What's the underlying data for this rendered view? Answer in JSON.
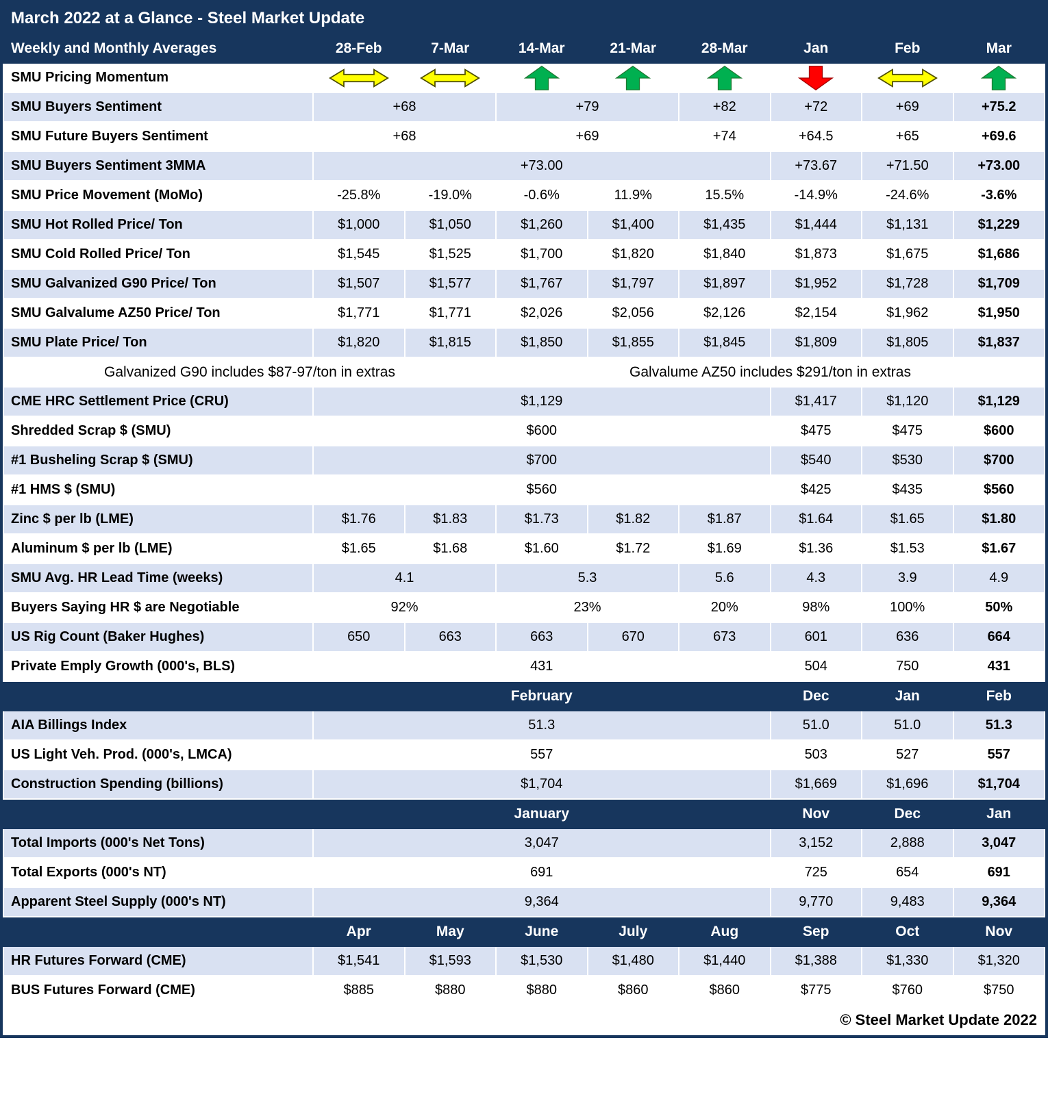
{
  "title": "March 2022 at a Glance - Steel Market Update",
  "colors": {
    "navy": "#17365D",
    "row_alt": "#D9E1F2",
    "arrow_up": "#00B050",
    "arrow_down": "#FF0000",
    "arrow_sideways": "#FFFF00"
  },
  "header": {
    "label": "Weekly and Monthly Averages",
    "cols": [
      "28-Feb",
      "7-Mar",
      "14-Mar",
      "21-Mar",
      "28-Mar",
      "Jan",
      "Feb",
      "Mar"
    ]
  },
  "rows": [
    {
      "type": "momentum",
      "shade": "white",
      "label": "SMU Pricing Momentum",
      "arrows": [
        "sideways",
        "sideways",
        "up",
        "up",
        "up",
        "down",
        "sideways",
        "up"
      ]
    },
    {
      "type": "data",
      "shade": "blue",
      "label": "SMU Buyers Sentiment",
      "cells": [
        {
          "t": "+68",
          "span": 2
        },
        {
          "t": "+79",
          "span": 2
        },
        {
          "t": "+82"
        },
        {
          "t": "+72"
        },
        {
          "t": "+69"
        },
        {
          "t": "+75.2",
          "b": true
        }
      ]
    },
    {
      "type": "data",
      "shade": "white",
      "label": "SMU Future Buyers Sentiment",
      "cells": [
        {
          "t": "+68",
          "span": 2
        },
        {
          "t": "+69",
          "span": 2
        },
        {
          "t": "+74"
        },
        {
          "t": "+64.5"
        },
        {
          "t": "+65"
        },
        {
          "t": "+69.6",
          "b": true
        }
      ]
    },
    {
      "type": "data",
      "shade": "blue",
      "label": "SMU Buyers Sentiment 3MMA",
      "cells": [
        {
          "t": "+73.00",
          "span": 5
        },
        {
          "t": "+73.67"
        },
        {
          "t": "+71.50"
        },
        {
          "t": "+73.00",
          "b": true
        }
      ]
    },
    {
      "type": "data",
      "shade": "white",
      "label": "SMU Price Movement (MoMo)",
      "cells": [
        {
          "t": "-25.8%"
        },
        {
          "t": "-19.0%"
        },
        {
          "t": "-0.6%"
        },
        {
          "t": "11.9%"
        },
        {
          "t": "15.5%"
        },
        {
          "t": "-14.9%"
        },
        {
          "t": "-24.6%"
        },
        {
          "t": "-3.6%",
          "b": true
        }
      ]
    },
    {
      "type": "data",
      "shade": "blue",
      "label": "SMU Hot Rolled Price/ Ton",
      "cells": [
        {
          "t": "$1,000"
        },
        {
          "t": "$1,050"
        },
        {
          "t": "$1,260"
        },
        {
          "t": "$1,400"
        },
        {
          "t": "$1,435"
        },
        {
          "t": "$1,444"
        },
        {
          "t": "$1,131"
        },
        {
          "t": "$1,229",
          "b": true
        }
      ]
    },
    {
      "type": "data",
      "shade": "white",
      "label": "SMU Cold Rolled Price/ Ton",
      "cells": [
        {
          "t": "$1,545"
        },
        {
          "t": "$1,525"
        },
        {
          "t": "$1,700"
        },
        {
          "t": "$1,820"
        },
        {
          "t": "$1,840"
        },
        {
          "t": "$1,873"
        },
        {
          "t": "$1,675"
        },
        {
          "t": "$1,686",
          "b": true
        }
      ]
    },
    {
      "type": "data",
      "shade": "blue",
      "label": "SMU Galvanized G90 Price/ Ton",
      "cells": [
        {
          "t": "$1,507"
        },
        {
          "t": "$1,577"
        },
        {
          "t": "$1,767"
        },
        {
          "t": "$1,797"
        },
        {
          "t": "$1,897"
        },
        {
          "t": "$1,952"
        },
        {
          "t": "$1,728"
        },
        {
          "t": "$1,709",
          "b": true
        }
      ]
    },
    {
      "type": "data",
      "shade": "white",
      "label": "SMU Galvalume AZ50 Price/ Ton",
      "cells": [
        {
          "t": "$1,771"
        },
        {
          "t": "$1,771"
        },
        {
          "t": "$2,026"
        },
        {
          "t": "$2,056"
        },
        {
          "t": "$2,126"
        },
        {
          "t": "$2,154"
        },
        {
          "t": "$1,962"
        },
        {
          "t": "$1,950",
          "b": true
        }
      ]
    },
    {
      "type": "data",
      "shade": "blue",
      "label": "SMU Plate Price/ Ton",
      "cells": [
        {
          "t": "$1,820"
        },
        {
          "t": "$1,815"
        },
        {
          "t": "$1,850"
        },
        {
          "t": "$1,855"
        },
        {
          "t": "$1,845"
        },
        {
          "t": "$1,809"
        },
        {
          "t": "$1,805"
        },
        {
          "t": "$1,837",
          "b": true
        }
      ]
    },
    {
      "type": "note",
      "shade": "white",
      "left": "Galvanized G90 includes $87-97/ton in extras",
      "right": "Galvalume AZ50 includes $291/ton in extras"
    },
    {
      "type": "data",
      "shade": "blue",
      "label": "CME HRC Settlement Price (CRU)",
      "cells": [
        {
          "t": "$1,129",
          "span": 5
        },
        {
          "t": "$1,417"
        },
        {
          "t": "$1,120"
        },
        {
          "t": "$1,129",
          "b": true
        }
      ]
    },
    {
      "type": "data",
      "shade": "white",
      "label": "Shredded Scrap $ (SMU)",
      "cells": [
        {
          "t": "$600",
          "span": 5
        },
        {
          "t": "$475"
        },
        {
          "t": "$475"
        },
        {
          "t": "$600",
          "b": true
        }
      ]
    },
    {
      "type": "data",
      "shade": "blue",
      "label": "#1 Busheling Scrap $ (SMU)",
      "cells": [
        {
          "t": "$700",
          "span": 5
        },
        {
          "t": "$540"
        },
        {
          "t": "$530"
        },
        {
          "t": "$700",
          "b": true
        }
      ]
    },
    {
      "type": "data",
      "shade": "white",
      "label": "#1 HMS $ (SMU)",
      "cells": [
        {
          "t": "$560",
          "span": 5
        },
        {
          "t": "$425"
        },
        {
          "t": "$435"
        },
        {
          "t": "$560",
          "b": true
        }
      ]
    },
    {
      "type": "data",
      "shade": "blue",
      "label": "Zinc $ per lb (LME)",
      "cells": [
        {
          "t": "$1.76"
        },
        {
          "t": "$1.83"
        },
        {
          "t": "$1.73"
        },
        {
          "t": "$1.82"
        },
        {
          "t": "$1.87"
        },
        {
          "t": "$1.64"
        },
        {
          "t": "$1.65"
        },
        {
          "t": "$1.80",
          "b": true
        }
      ]
    },
    {
      "type": "data",
      "shade": "white",
      "label": "Aluminum $ per lb (LME)",
      "cells": [
        {
          "t": "$1.65"
        },
        {
          "t": "$1.68"
        },
        {
          "t": "$1.60"
        },
        {
          "t": "$1.72"
        },
        {
          "t": "$1.69"
        },
        {
          "t": "$1.36"
        },
        {
          "t": "$1.53"
        },
        {
          "t": "$1.67",
          "b": true
        }
      ]
    },
    {
      "type": "data",
      "shade": "blue",
      "label": "SMU Avg. HR Lead Time (weeks)",
      "cells": [
        {
          "t": "4.1",
          "span": 2
        },
        {
          "t": "5.3",
          "span": 2
        },
        {
          "t": "5.6"
        },
        {
          "t": "4.3"
        },
        {
          "t": "3.9"
        },
        {
          "t": "4.9"
        }
      ]
    },
    {
      "type": "data",
      "shade": "white",
      "label": "Buyers Saying HR $ are Negotiable",
      "cells": [
        {
          "t": "92%",
          "span": 2
        },
        {
          "t": "23%",
          "span": 2
        },
        {
          "t": "20%"
        },
        {
          "t": "98%"
        },
        {
          "t": "100%"
        },
        {
          "t": "50%",
          "b": true
        }
      ]
    },
    {
      "type": "data",
      "shade": "blue",
      "label": "US Rig Count (Baker Hughes)",
      "cells": [
        {
          "t": "650"
        },
        {
          "t": "663"
        },
        {
          "t": "663"
        },
        {
          "t": "670"
        },
        {
          "t": "673"
        },
        {
          "t": "601"
        },
        {
          "t": "636"
        },
        {
          "t": "664",
          "b": true
        }
      ]
    },
    {
      "type": "data",
      "shade": "white",
      "label": "Private Emply Growth (000's, BLS)",
      "cells": [
        {
          "t": "431",
          "span": 5
        },
        {
          "t": "504"
        },
        {
          "t": "750"
        },
        {
          "t": "431",
          "b": true
        }
      ]
    },
    {
      "type": "section",
      "cells": [
        {
          "t": "February",
          "span": 5
        },
        {
          "t": "Dec"
        },
        {
          "t": "Jan"
        },
        {
          "t": "Feb"
        }
      ]
    },
    {
      "type": "data",
      "shade": "blue",
      "label": "AIA Billings Index",
      "cells": [
        {
          "t": "51.3",
          "span": 5
        },
        {
          "t": "51.0"
        },
        {
          "t": "51.0"
        },
        {
          "t": "51.3",
          "b": true
        }
      ]
    },
    {
      "type": "data",
      "shade": "white",
      "label": "US Light Veh. Prod. (000's, LMCA)",
      "cells": [
        {
          "t": "557",
          "span": 5
        },
        {
          "t": "503"
        },
        {
          "t": "527"
        },
        {
          "t": "557",
          "b": true
        }
      ]
    },
    {
      "type": "data",
      "shade": "blue",
      "label": "Construction Spending (billions)",
      "cells": [
        {
          "t": "$1,704",
          "span": 5
        },
        {
          "t": "$1,669"
        },
        {
          "t": "$1,696"
        },
        {
          "t": "$1,704",
          "b": true
        }
      ]
    },
    {
      "type": "section",
      "cells": [
        {
          "t": "January",
          "span": 5
        },
        {
          "t": "Nov"
        },
        {
          "t": "Dec"
        },
        {
          "t": "Jan"
        }
      ]
    },
    {
      "type": "data",
      "shade": "blue",
      "label": "Total Imports (000's Net Tons)",
      "cells": [
        {
          "t": "3,047",
          "span": 5
        },
        {
          "t": "3,152"
        },
        {
          "t": "2,888"
        },
        {
          "t": "3,047",
          "b": true
        }
      ]
    },
    {
      "type": "data",
      "shade": "white",
      "label": "Total Exports (000's NT)",
      "cells": [
        {
          "t": "691",
          "span": 5
        },
        {
          "t": "725"
        },
        {
          "t": "654"
        },
        {
          "t": "691",
          "b": true
        }
      ]
    },
    {
      "type": "data",
      "shade": "blue",
      "label": "Apparent Steel Supply (000's NT)",
      "cells": [
        {
          "t": "9,364",
          "span": 5
        },
        {
          "t": "9,770"
        },
        {
          "t": "9,483"
        },
        {
          "t": "9,364",
          "b": true
        }
      ]
    },
    {
      "type": "section",
      "cells": [
        {
          "t": "Apr"
        },
        {
          "t": "May"
        },
        {
          "t": "June"
        },
        {
          "t": "July"
        },
        {
          "t": "Aug"
        },
        {
          "t": "Sep"
        },
        {
          "t": "Oct"
        },
        {
          "t": "Nov"
        }
      ]
    },
    {
      "type": "data",
      "shade": "blue",
      "label": "HR Futures Forward (CME)",
      "cells": [
        {
          "t": "$1,541"
        },
        {
          "t": "$1,593"
        },
        {
          "t": "$1,530"
        },
        {
          "t": "$1,480"
        },
        {
          "t": "$1,440"
        },
        {
          "t": "$1,388"
        },
        {
          "t": "$1,330"
        },
        {
          "t": "$1,320"
        }
      ]
    },
    {
      "type": "data",
      "shade": "white",
      "label": "BUS Futures Forward (CME)",
      "cells": [
        {
          "t": "$885"
        },
        {
          "t": "$880"
        },
        {
          "t": "$880"
        },
        {
          "t": "$860"
        },
        {
          "t": "$860"
        },
        {
          "t": "$775"
        },
        {
          "t": "$760"
        },
        {
          "t": "$750"
        }
      ]
    },
    {
      "type": "footer",
      "text": "© Steel Market Update 2022"
    }
  ]
}
